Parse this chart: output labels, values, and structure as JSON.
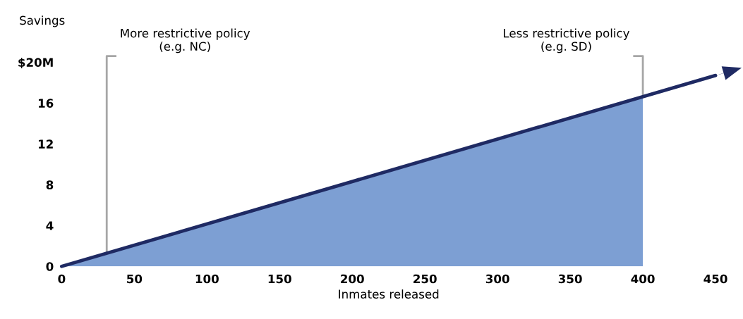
{
  "chart_data": {
    "type": "area",
    "xlabel": "Inmates released",
    "ylabel": "Savings",
    "xlim": [
      0,
      450
    ],
    "xticks": [
      0,
      50,
      100,
      150,
      200,
      250,
      300,
      350,
      400,
      450
    ],
    "ylim": [
      0,
      20
    ],
    "yticks": [
      0,
      4,
      8,
      12,
      16,
      {
        "value": 20,
        "label": "$20M"
      }
    ],
    "series": [
      {
        "type": "area",
        "color": "#7d9fd3",
        "x": [
          0,
          400
        ],
        "values": [
          0,
          16.6
        ]
      },
      {
        "type": "line",
        "color": "#1f2a63",
        "x": [
          0,
          450
        ],
        "values": [
          0,
          18.7
        ]
      }
    ],
    "ref_lines": [
      {
        "axis": "x",
        "value": 31,
        "label": "More restrictive policy (e.g. NC)",
        "color": "#a6a6a6"
      },
      {
        "axis": "x",
        "value": 400,
        "label": "Less restrictive policy (e.g. SD)",
        "color": "#a6a6a6"
      }
    ],
    "grid": false,
    "legend": false
  }
}
